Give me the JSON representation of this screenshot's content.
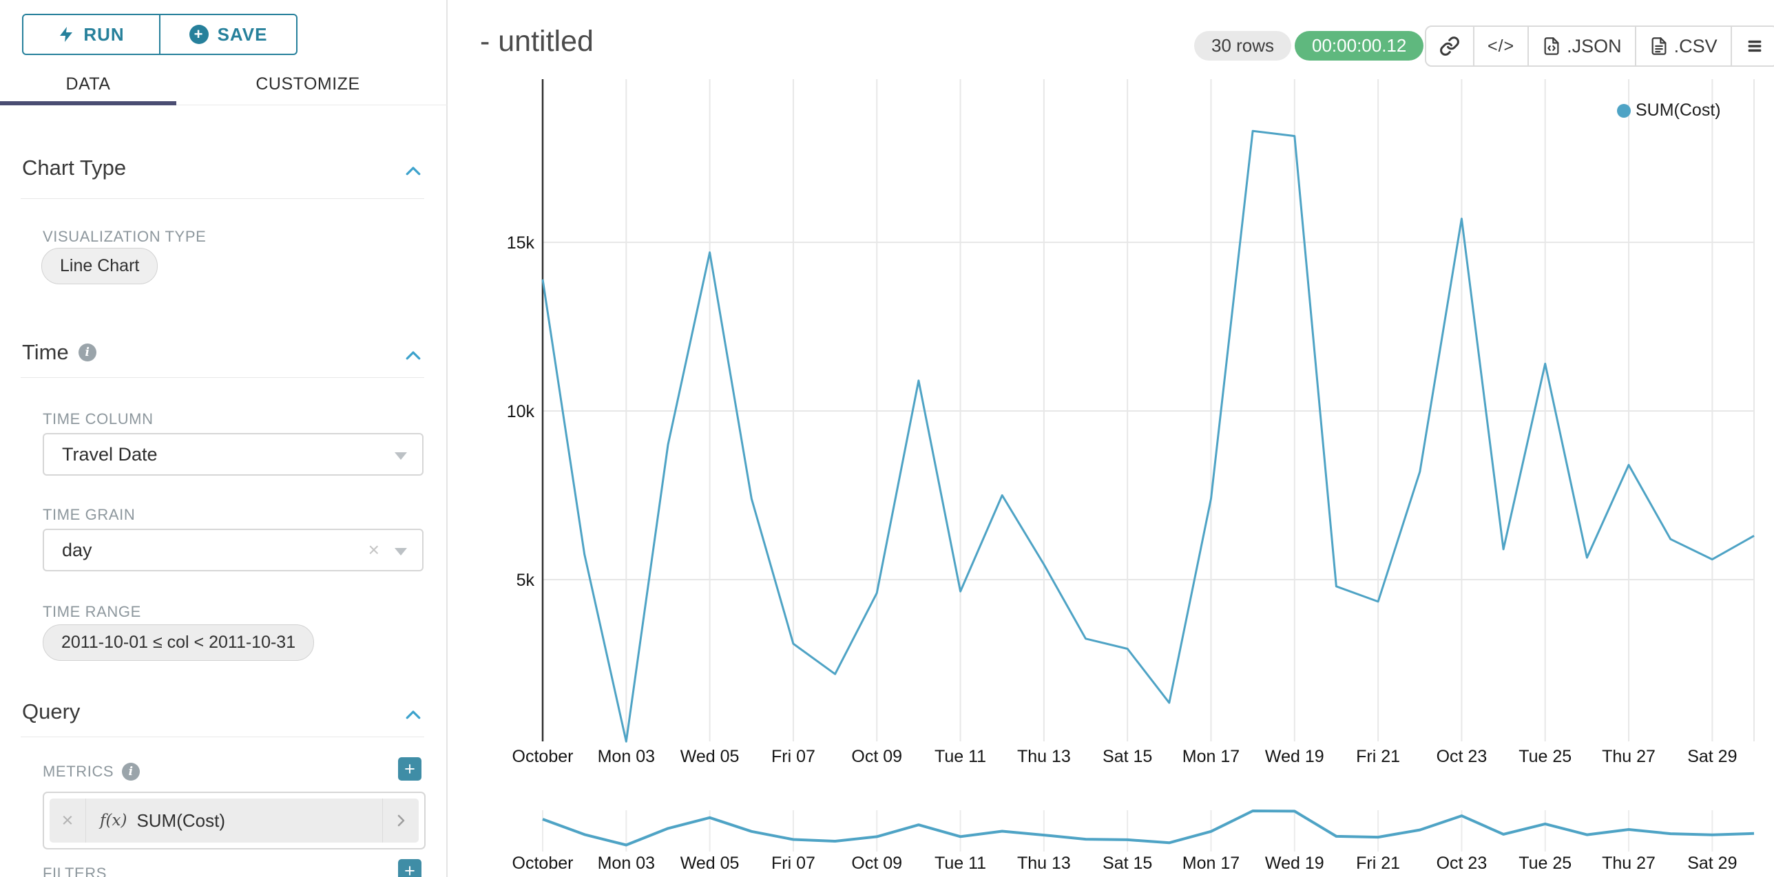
{
  "colors": {
    "accent": "#26809b",
    "caret_blue": "#3ca2cc",
    "line": "#4ea3c5",
    "success_green": "#5fb87e",
    "tab_underline": "#4a4d72",
    "add_button": "#3f8da6"
  },
  "icons": {
    "run": "lightning-bolt",
    "save": "plus-circle",
    "section_collapse": "chevron-up",
    "info": "info-circle",
    "select_caret": "caret-down",
    "clear": "x",
    "metric_function": "f(x)",
    "metric_expand": "chevron-right",
    "add": "plus",
    "share": "link-chain",
    "embed": "code-brackets",
    "export_json": "file-code",
    "export_csv": "file-lines",
    "menu": "hamburger"
  },
  "sidebar": {
    "run_label": "RUN",
    "save_label": "SAVE",
    "tabs": [
      {
        "label": "DATA",
        "active": true
      },
      {
        "label": "CUSTOMIZE",
        "active": false
      }
    ],
    "chart_type": {
      "title": "Chart Type",
      "viz_label": "VISUALIZATION TYPE",
      "viz_value": "Line Chart"
    },
    "time": {
      "title": "Time",
      "col_label": "TIME COLUMN",
      "col_value": "Travel Date",
      "grain_label": "TIME GRAIN",
      "grain_value": "day",
      "range_label": "TIME RANGE",
      "range_value": "2011-10-01 ≤ col < 2011-10-31"
    },
    "query": {
      "title": "Query",
      "metrics_label": "METRICS",
      "metric_fx": "f(x)",
      "metric_value": "SUM(Cost)",
      "filters_label": "FILTERS"
    }
  },
  "header": {
    "title": "- untitled",
    "rows_badge": "30 rows",
    "timer_badge": "00:00:00.12",
    "embed_label": "</>",
    "json_label": ".JSON",
    "csv_label": ".CSV"
  },
  "legend": {
    "label": "SUM(Cost)"
  },
  "chart_data": {
    "type": "line",
    "title": "",
    "legend_entries": [
      "SUM(Cost)"
    ],
    "legend_position": "top-right",
    "grid": true,
    "line_color": "#4ea3c5",
    "x_axis": {
      "label": "",
      "unit": "day of October 2011, 30 points (2011-10-01 to 2011-10-30)",
      "tick_days": [
        1,
        3,
        5,
        7,
        9,
        11,
        13,
        15,
        17,
        19,
        21,
        23,
        25,
        27,
        29
      ],
      "tick_labels": [
        "October",
        "Mon 03",
        "Wed 05",
        "Fri 07",
        "Oct 09",
        "Tue 11",
        "Thu 13",
        "Sat 15",
        "Mon 17",
        "Wed 19",
        "Fri 21",
        "Oct 23",
        "Tue 25",
        "Thu 27",
        "Sat 29"
      ]
    },
    "y_axis": {
      "label": "",
      "ticks": [
        5000,
        10000,
        15000
      ],
      "tick_labels": [
        "5k",
        "10k",
        "15k"
      ],
      "ylim": [
        200,
        19830
      ]
    },
    "series": [
      {
        "name": "SUM(Cost)",
        "x_day": [
          1,
          2,
          3,
          4,
          5,
          6,
          7,
          8,
          9,
          10,
          11,
          12,
          13,
          14,
          15,
          16,
          17,
          18,
          19,
          20,
          21,
          22,
          23,
          24,
          25,
          26,
          27,
          28,
          29,
          30
        ],
        "values": [
          13900,
          5750,
          200,
          9000,
          14700,
          7400,
          3100,
          2200,
          4600,
          10900,
          4650,
          7500,
          5450,
          3250,
          2950,
          1350,
          7400,
          18300,
          18150,
          4800,
          4350,
          8200,
          15700,
          5900,
          11400,
          5650,
          8400,
          6200,
          5600,
          6300
        ]
      }
    ],
    "mini_chart": {
      "present": true,
      "x_tick_labels": [
        "October",
        "Mon 03",
        "Wed 05",
        "Fri 07",
        "Oct 09",
        "Tue 11",
        "Thu 13",
        "Sat 15",
        "Mon 17",
        "Wed 19",
        "Fri 21",
        "Oct 23",
        "Tue 25",
        "Thu 27",
        "Sat 29"
      ]
    }
  }
}
